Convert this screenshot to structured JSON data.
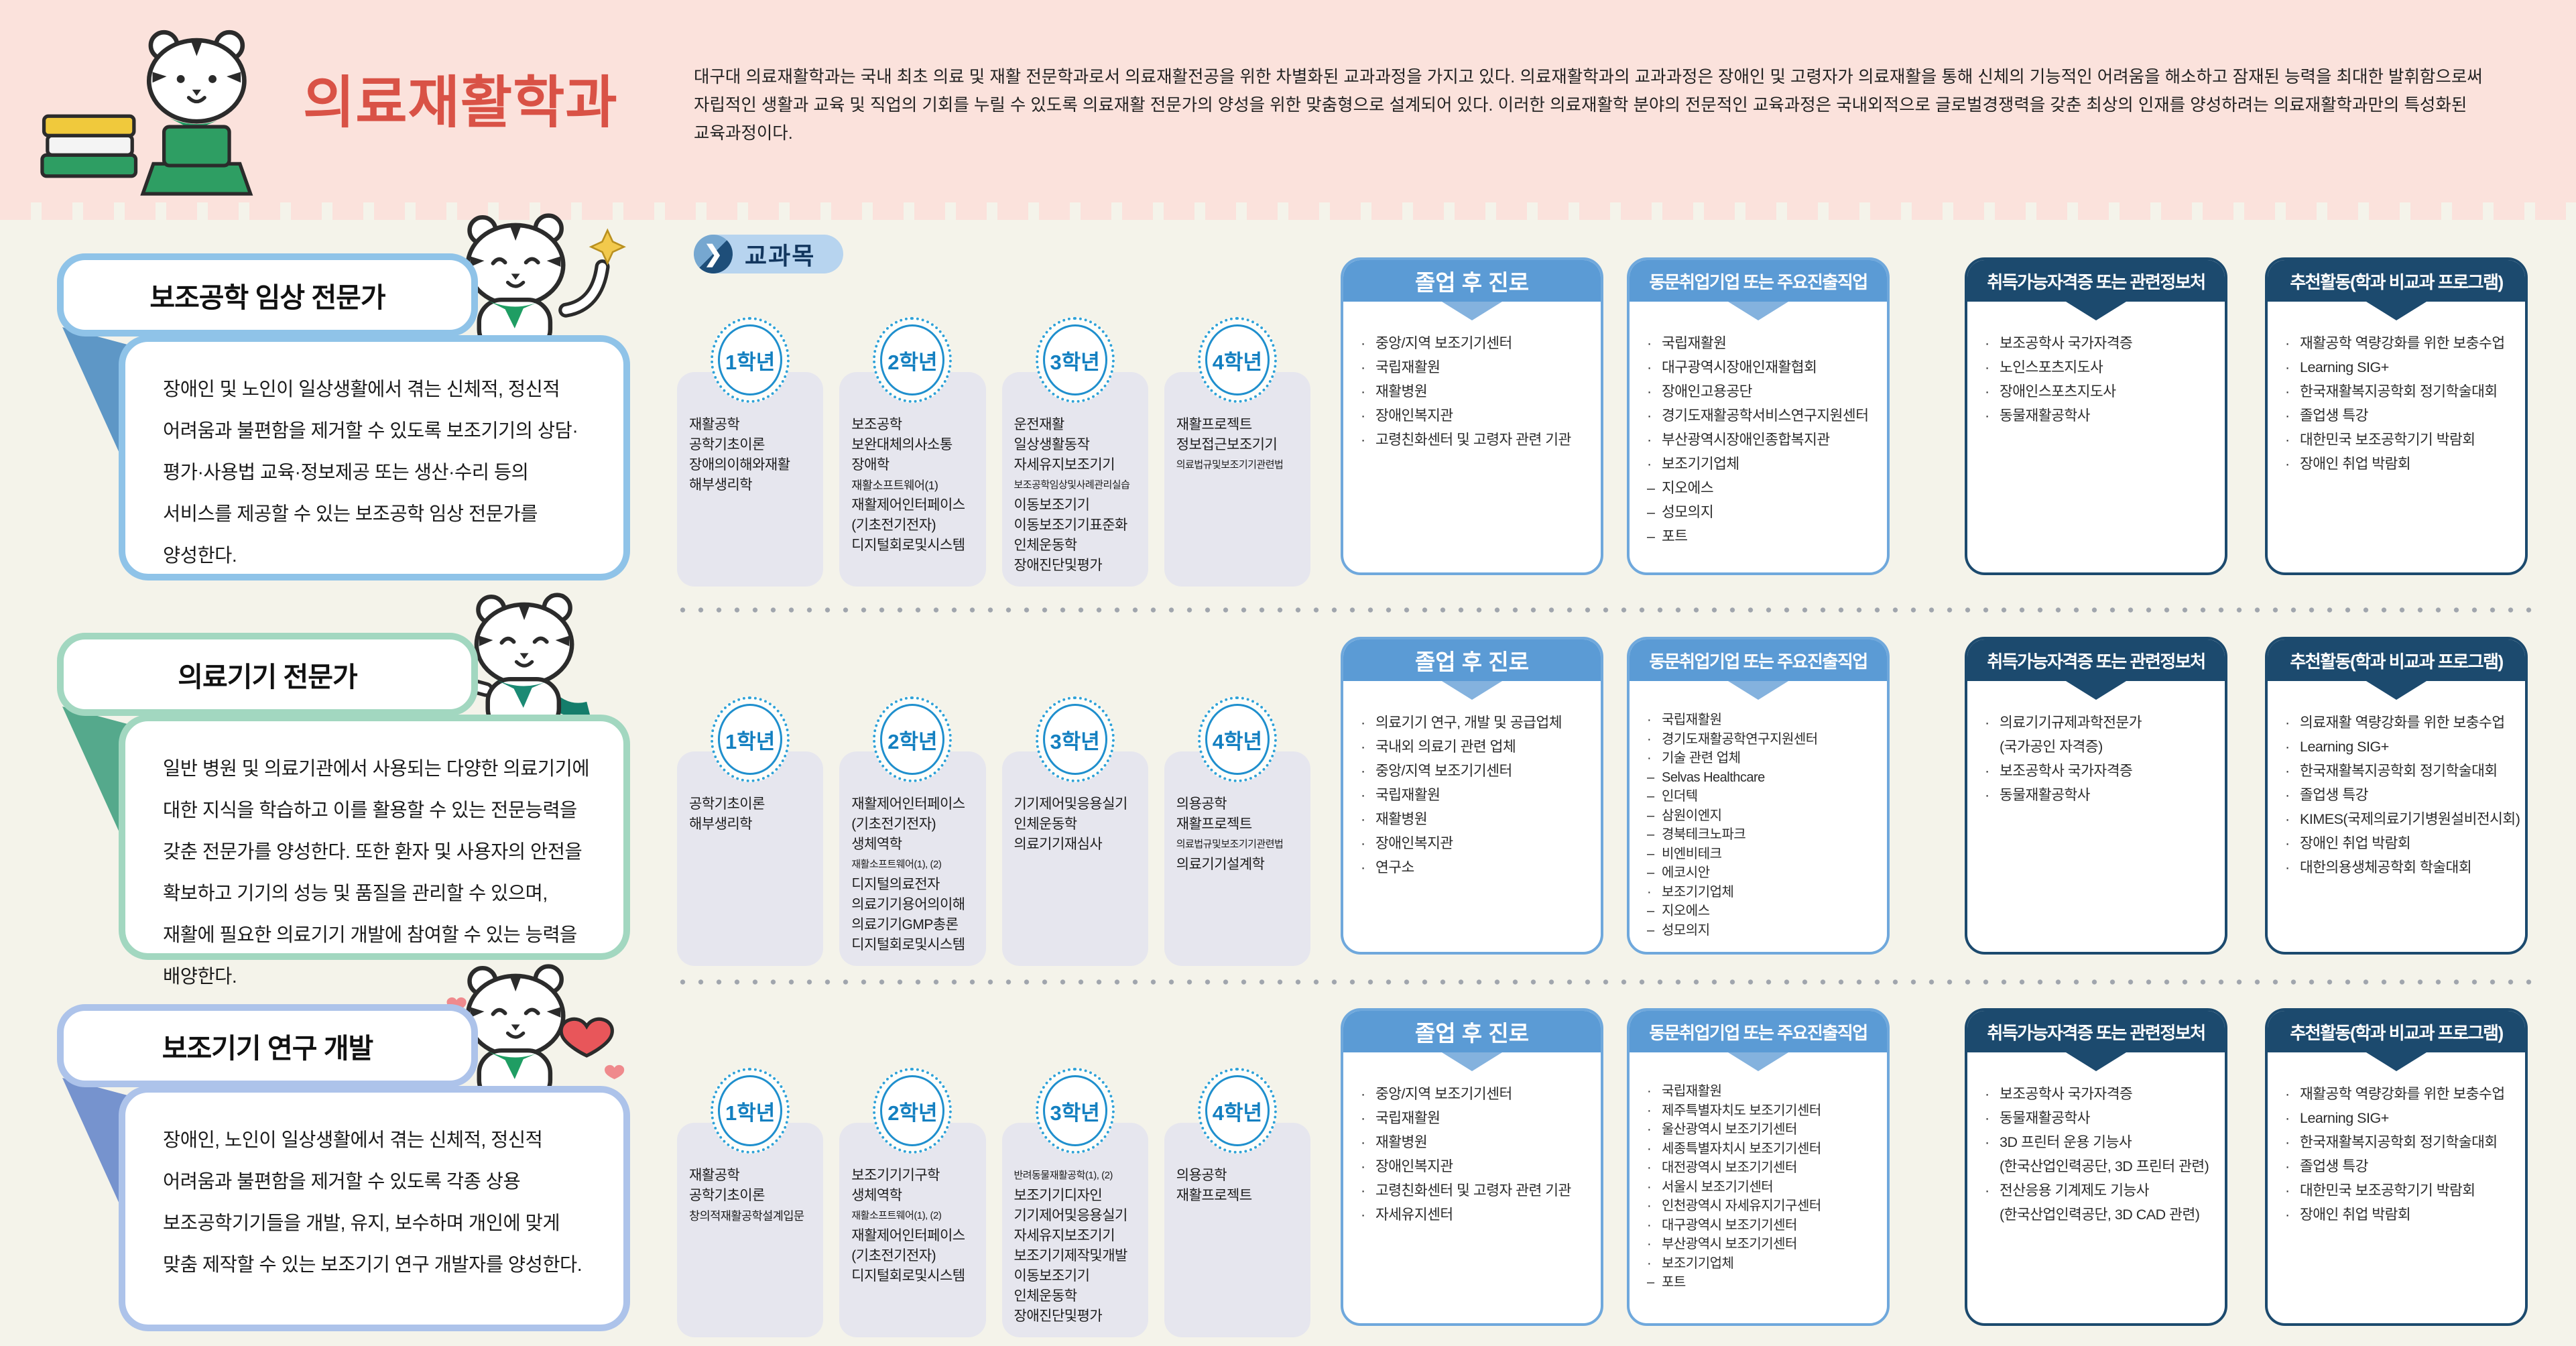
{
  "header": {
    "title": "의료재활학과",
    "description": "대구대 의료재활학과는 국내 최초 의료 및 재활 전문학과로서 의료재활전공을 위한 차별화된 교과과정을 가지고 있다. 의료재활학과의 교과과정은 장애인 및 고령자가 의료재활을 통해 신체의 기능적인 어려움을 해소하고 잠재된 능력을 최대한 발휘함으로써 자립적인 생활과 교육 및 직업의 기회를 누릴 수 있도록 의료재활 전문가의 양성을 위한 맞춤형으로 설계되어 있다. 이러한 의료재활학 분야의 전문적인 교육과정은 국내외적으로 글로벌경쟁력을 갖춘 최상의 인재를 양성하려는 의료재활학과만의 특성화된 교육과정이다."
  },
  "section_label": "교과목",
  "box_titles": {
    "career": "졸업 후 진로",
    "alumni": "동문취업기업 또는 주요진출직업",
    "certs": "취득가능자격증 또는 관련정보처",
    "activities": "추천활동(학과 비교과 프로그램)"
  },
  "colors": {
    "header_pink": "#fbe2dc",
    "title_red": "#d95246",
    "page_ivory": "#f4f3ea",
    "row1_blue": "#8fc3e8",
    "row2_green": "#a2d7c0",
    "row3_periwinkle": "#adc3ea",
    "box_blue_header": "#5b9bd5",
    "box_navy_header": "#1c4a6e",
    "badge_blue": "#1f8fcd",
    "column_gray": "#e6e6ee"
  },
  "icons": {
    "pill_arrow": "chevron-right-icon",
    "header_mascot": "tiger-with-books-and-laptop",
    "row_mascots": [
      "tiger-waving",
      "tiger-pointing",
      "tiger-holding-heart"
    ]
  },
  "rows": [
    {
      "track_title": "보조공학 임상 전문가",
      "track_desc": "장애인 및 노인이 일상생활에서 겪는 신체적, 정신적 어려움과 불편함을 제거할 수 있도록 보조기기의 상담·평가·사용법 교육·정보제공 또는 생산·수리 등의 서비스를 제공할 수 있는 보조공학 임상 전문가를 양성한다.",
      "years": [
        {
          "label": "1학년",
          "courses": [
            "재활공학",
            "공학기초이론",
            "장애의이해와재활",
            "해부생리학"
          ]
        },
        {
          "label": "2학년",
          "courses": [
            "보조공학",
            "보완대체의사소통",
            "장애학",
            "재활소프트웨어(1)",
            "재활제어인터페이스",
            "(기초전기전자)",
            "디지털회로및시스템"
          ]
        },
        {
          "label": "3학년",
          "courses": [
            "운전재활",
            "일상생활동작",
            "자세유지보조기기",
            "보조공학임상및사례관리실습",
            "이동보조기기",
            "이동보조기기표준화",
            "인체운동학",
            "장애진단및평가"
          ]
        },
        {
          "label": "4학년",
          "courses": [
            "재활프로젝트",
            "정보접근보조기기",
            "의료법규및보조기기관련법"
          ]
        }
      ],
      "career": [
        {
          "b": "·",
          "t": "중앙/지역 보조기기센터"
        },
        {
          "b": "·",
          "t": "국립재활원"
        },
        {
          "b": "·",
          "t": "재활병원"
        },
        {
          "b": "·",
          "t": "장애인복지관"
        },
        {
          "b": "·",
          "t": "고령친화센터 및 고령자 관련 기관"
        }
      ],
      "alumni": [
        {
          "b": "·",
          "t": "국립재활원"
        },
        {
          "b": "·",
          "t": "대구광역시장애인재활협회"
        },
        {
          "b": "·",
          "t": "장애인고용공단"
        },
        {
          "b": "·",
          "t": "경기도재활공학서비스연구지원센터"
        },
        {
          "b": "·",
          "t": "부산광역시장애인종합복지관"
        },
        {
          "b": "·",
          "t": "보조기기업체"
        },
        {
          "b": "–",
          "t": "지오에스"
        },
        {
          "b": "–",
          "t": "성모의지"
        },
        {
          "b": "–",
          "t": "포트"
        }
      ],
      "certs": [
        {
          "b": "·",
          "t": "보조공학사 국가자격증"
        },
        {
          "b": "·",
          "t": "노인스포츠지도사"
        },
        {
          "b": "·",
          "t": "장애인스포츠지도사"
        },
        {
          "b": "·",
          "t": "동물재활공학사"
        }
      ],
      "activities": [
        {
          "b": "·",
          "t": "재활공학 역량강화를 위한 보충수업"
        },
        {
          "b": "·",
          "t": "Learning SIG+"
        },
        {
          "b": "·",
          "t": "한국재활복지공학회 정기학술대회"
        },
        {
          "b": "·",
          "t": "졸업생 특강"
        },
        {
          "b": "·",
          "t": "대한민국 보조공학기기 박람회"
        },
        {
          "b": "·",
          "t": "장애인 취업 박람회"
        }
      ]
    },
    {
      "track_title": "의료기기 전문가",
      "track_desc": "일반 병원 및 의료기관에서 사용되는 다양한 의료기기에 대한 지식을 학습하고 이를 활용할 수 있는 전문능력을 갖춘 전문가를 양성한다. 또한 환자 및 사용자의 안전을 확보하고 기기의 성능 및 품질을 관리할 수 있으며, 재활에 필요한 의료기기 개발에 참여할 수 있는 능력을 배양한다.",
      "years": [
        {
          "label": "1학년",
          "courses": [
            "공학기초이론",
            "해부생리학"
          ]
        },
        {
          "label": "2학년",
          "courses": [
            "재활제어인터페이스",
            "(기초전기전자)",
            "생체역학",
            "재활소프트웨어(1), (2)",
            "디지털의료전자",
            "의료기기용어의이해",
            "의료기기GMP총론",
            "디지털회로및시스템"
          ]
        },
        {
          "label": "3학년",
          "courses": [
            "기기제어및응용실기",
            "인체운동학",
            "의료기기재심사"
          ]
        },
        {
          "label": "4학년",
          "courses": [
            "의용공학",
            "재활프로젝트",
            "의료법규및보조기기관련법",
            "의료기기설계학"
          ]
        }
      ],
      "career": [
        {
          "b": "·",
          "t": "의료기기 연구, 개발 및 공급업체"
        },
        {
          "b": "·",
          "t": "국내외 의료기 관련 업체"
        },
        {
          "b": "·",
          "t": "중앙/지역 보조기기센터"
        },
        {
          "b": "·",
          "t": "국립재활원"
        },
        {
          "b": "·",
          "t": "재활병원"
        },
        {
          "b": "·",
          "t": "장애인복지관"
        },
        {
          "b": "·",
          "t": "연구소"
        }
      ],
      "alumni": [
        {
          "b": "·",
          "t": "국립재활원"
        },
        {
          "b": "·",
          "t": "경기도재활공학연구지원센터"
        },
        {
          "b": "·",
          "t": "기술 관련 업체"
        },
        {
          "b": "–",
          "t": "Selvas Healthcare"
        },
        {
          "b": "–",
          "t": "인더텍"
        },
        {
          "b": "–",
          "t": "삼원이엔지"
        },
        {
          "b": "–",
          "t": "경북테크노파크"
        },
        {
          "b": "–",
          "t": "비엔비테크"
        },
        {
          "b": "–",
          "t": "에코시안"
        },
        {
          "b": "·",
          "t": "보조기기업체"
        },
        {
          "b": "–",
          "t": "지오에스"
        },
        {
          "b": "–",
          "t": "성모의지"
        }
      ],
      "certs": [
        {
          "b": "·",
          "t": "의료기기규제과학전문가"
        },
        {
          "b": "",
          "t": "(국가공인 자격증)"
        },
        {
          "b": "·",
          "t": "보조공학사 국가자격증"
        },
        {
          "b": "·",
          "t": "동물재활공학사"
        }
      ],
      "activities": [
        {
          "b": "·",
          "t": "의료재활 역량강화를 위한 보충수업"
        },
        {
          "b": "·",
          "t": "Learning SIG+"
        },
        {
          "b": "·",
          "t": "한국재활복지공학회 정기학술대회"
        },
        {
          "b": "·",
          "t": "졸업생 특강"
        },
        {
          "b": "·",
          "t": "KIMES(국제의료기기병원설비전시회)"
        },
        {
          "b": "·",
          "t": "장애인 취업 박람회"
        },
        {
          "b": "·",
          "t": "대한의용생체공학회 학술대회"
        }
      ]
    },
    {
      "track_title": "보조기기 연구 개발",
      "track_desc": "장애인, 노인이 일상생활에서 겪는 신체적, 정신적 어려움과 불편함을 제거할 수 있도록 각종 상용 보조공학기기들을 개발, 유지, 보수하며 개인에 맞게 맞춤 제작할 수 있는 보조기기 연구 개발자를 양성한다.",
      "years": [
        {
          "label": "1학년",
          "courses": [
            "재활공학",
            "공학기초이론",
            "창의적재활공학설계입문"
          ]
        },
        {
          "label": "2학년",
          "courses": [
            "보조기기기구학",
            "생체역학",
            "재활소프트웨어(1), (2)",
            "재활제어인터페이스",
            "(기초전기전자)",
            "디지털회로및시스템"
          ]
        },
        {
          "label": "3학년",
          "courses": [
            "반려동물재활공학(1), (2)",
            "보조기기디자인",
            "기기제어및응용실기",
            "자세유지보조기기",
            "보조기기제작및개발",
            "이동보조기기",
            "인체운동학",
            "장애진단및평가"
          ]
        },
        {
          "label": "4학년",
          "courses": [
            "의용공학",
            "재활프로젝트"
          ]
        }
      ],
      "career": [
        {
          "b": "·",
          "t": "중앙/지역 보조기기센터"
        },
        {
          "b": "·",
          "t": "국립재활원"
        },
        {
          "b": "·",
          "t": "재활병원"
        },
        {
          "b": "·",
          "t": "장애인복지관"
        },
        {
          "b": "·",
          "t": "고령친화센터 및 고령자 관련 기관"
        },
        {
          "b": "·",
          "t": "자세유지센터"
        }
      ],
      "alumni": [
        {
          "b": "·",
          "t": "국립재활원"
        },
        {
          "b": "·",
          "t": "제주특별자치도 보조기기센터"
        },
        {
          "b": "·",
          "t": "울산광역시 보조기기센터"
        },
        {
          "b": "·",
          "t": "세종특별자치시 보조기기센터"
        },
        {
          "b": "·",
          "t": "대전광역시 보조기기센터"
        },
        {
          "b": "·",
          "t": "서울시 보조기기센터"
        },
        {
          "b": "·",
          "t": "인천광역시 자세유지기구센터"
        },
        {
          "b": "·",
          "t": "대구광역시 보조기기센터"
        },
        {
          "b": "·",
          "t": "부산광역시 보조기기센터"
        },
        {
          "b": "·",
          "t": "보조기기업체"
        },
        {
          "b": "–",
          "t": "포트"
        }
      ],
      "certs": [
        {
          "b": "·",
          "t": "보조공학사 국가자격증"
        },
        {
          "b": "·",
          "t": "동물재활공학사"
        },
        {
          "b": "·",
          "t": "3D 프린터 운용 기능사"
        },
        {
          "b": "",
          "t": "(한국산업인력공단, 3D 프린터 관련)"
        },
        {
          "b": "·",
          "t": "전산응용 기계제도 기능사"
        },
        {
          "b": "",
          "t": "(한국산업인력공단, 3D CAD 관련)"
        }
      ],
      "activities": [
        {
          "b": "·",
          "t": "재활공학 역량강화를 위한 보충수업"
        },
        {
          "b": "·",
          "t": "Learning SIG+"
        },
        {
          "b": "·",
          "t": "한국재활복지공학회 정기학술대회"
        },
        {
          "b": "·",
          "t": "졸업생 특강"
        },
        {
          "b": "·",
          "t": "대한민국 보조공학기기 박람회"
        },
        {
          "b": "·",
          "t": "장애인 취업 박람회"
        }
      ]
    }
  ]
}
